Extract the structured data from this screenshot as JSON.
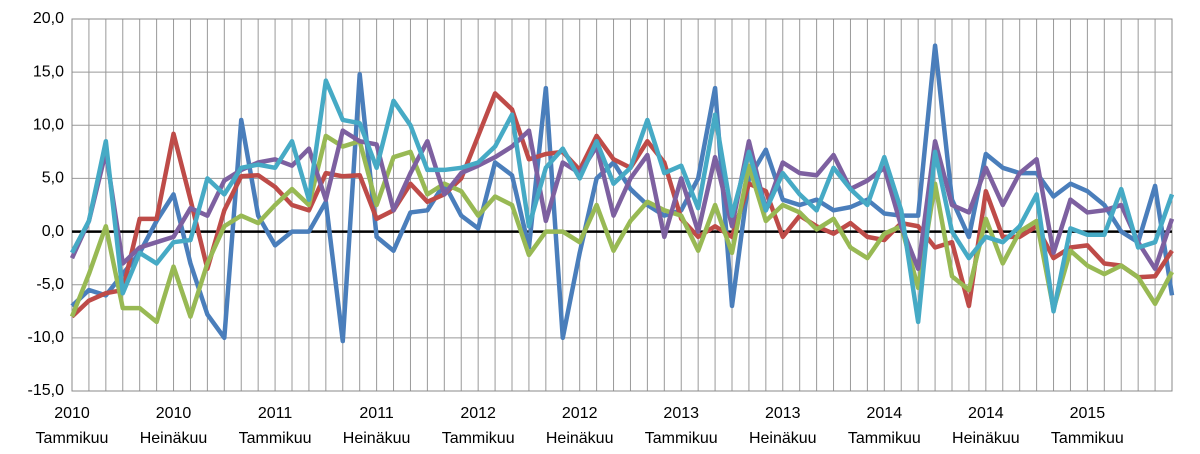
{
  "chart_data": {
    "type": "line",
    "categories": [
      "2010 Tammikuu",
      null,
      null,
      null,
      null,
      null,
      "2010 Heinäkuu",
      null,
      null,
      null,
      null,
      null,
      "2011 Tammikuu",
      null,
      null,
      null,
      null,
      null,
      "2011 Heinäkuu",
      null,
      null,
      null,
      null,
      null,
      "2012 Tammikuu",
      null,
      null,
      null,
      null,
      null,
      "2012 Heinäkuu",
      null,
      null,
      null,
      null,
      null,
      "2013 Tammikuu",
      null,
      null,
      null,
      null,
      null,
      "2013 Heinäkuu",
      null,
      null,
      null,
      null,
      null,
      "2014 Tammikuu",
      null,
      null,
      null,
      null,
      null,
      "2014 Heinäkuu",
      null,
      null,
      null,
      null,
      null,
      "2015 Tammikuu",
      null,
      null,
      null,
      null,
      null
    ],
    "series": [
      {
        "color": "#4a7ebb",
        "values": [
          -7,
          -5.5,
          -6,
          -4,
          -2,
          1,
          3.5,
          -3,
          -7.8,
          -10,
          10.5,
          1.5,
          -1.3,
          0,
          0,
          2.8,
          -10.3,
          14.8,
          -0.5,
          -1.8,
          1.8,
          2,
          4.5,
          1.5,
          0.3,
          6.5,
          5.3,
          -1.5,
          13.5,
          -10,
          -2,
          5,
          6.5,
          4,
          2.5,
          1.5,
          2,
          5,
          13.5,
          -7,
          5,
          7.7,
          3,
          2.5,
          3,
          2,
          2.3,
          3,
          1.7,
          1.5,
          1.5,
          17.5,
          3,
          -0.5,
          7.3,
          6,
          5.5,
          5.5,
          3.3,
          4.5,
          3.8,
          2.5,
          0,
          -1,
          4.3,
          -6
        ]
      },
      {
        "color": "#be4b48",
        "values": [
          -8,
          -6.5,
          -5.8,
          -5.5,
          1.2,
          1.2,
          9.2,
          3,
          -3.5,
          2,
          5.2,
          5.3,
          4.2,
          2.5,
          2,
          5.5,
          5.2,
          5.3,
          1.2,
          2,
          4.5,
          2.8,
          3.5,
          5,
          9,
          13,
          11.5,
          6.8,
          7.3,
          7.5,
          5.8,
          9,
          6.8,
          6,
          8.5,
          6.5,
          1.2,
          -0.5,
          0.5,
          -0.5,
          4.5,
          3.8,
          -0.5,
          1.5,
          0.5,
          -0.2,
          0.8,
          -0.5,
          -0.8,
          0.8,
          0.5,
          -1.5,
          -1,
          -7,
          3.8,
          -0.5,
          -0.5,
          0.5,
          -2.5,
          -1.5,
          -1.3,
          -3,
          -3.2,
          -4.3,
          -4.2,
          -1.8
        ]
      },
      {
        "color": "#98b954",
        "values": [
          -8,
          -4,
          0.5,
          -7.2,
          -7.2,
          -8.5,
          -3.3,
          -8,
          -3,
          0.5,
          1.5,
          0.8,
          2.5,
          4,
          2.5,
          9,
          8,
          8.5,
          2.5,
          7,
          7.5,
          3.5,
          4.5,
          3.8,
          1.5,
          3.3,
          2.5,
          -2.2,
          0,
          0,
          -1,
          2.5,
          -1.8,
          1,
          2.8,
          2,
          1.5,
          -1.8,
          2.5,
          -2,
          6.2,
          1,
          2.5,
          1.8,
          0.2,
          1.2,
          -1.5,
          -2.5,
          -0.2,
          0.5,
          -5.3,
          4.5,
          -4.2,
          -5.5,
          1.2,
          -3,
          0,
          1,
          -7.3,
          -1.8,
          -3.2,
          -4,
          -3.2,
          -4.3,
          -6.8,
          -3.8
        ]
      },
      {
        "color": "#7d60a0",
        "values": [
          -2.5,
          1,
          7.5,
          -3,
          -1.5,
          -1,
          -0.5,
          2.2,
          1.5,
          4.8,
          5.8,
          6.5,
          6.8,
          6.2,
          7.8,
          3,
          9.5,
          8.5,
          8.2,
          2,
          5.5,
          8.5,
          3.5,
          5.5,
          6.2,
          7,
          8,
          9.5,
          1,
          6.5,
          5.5,
          8,
          1.5,
          5,
          7.2,
          -0.5,
          5,
          0,
          7,
          0.5,
          8.5,
          2,
          6.5,
          5.5,
          5.3,
          7.2,
          4,
          4.8,
          6,
          0.5,
          -3.5,
          8.5,
          2.5,
          1.8,
          6,
          2.5,
          5.5,
          6.8,
          -2,
          3,
          1.8,
          2,
          2.5,
          -1,
          -3.5,
          1.2
        ]
      },
      {
        "color": "#46aac5",
        "values": [
          -2,
          1,
          8.5,
          -5.8,
          -2,
          -3,
          -1,
          -0.8,
          5,
          3.5,
          6,
          6.3,
          6,
          8.5,
          3,
          14.2,
          10.5,
          10.2,
          6,
          12.3,
          10,
          5.8,
          5.8,
          6,
          6.5,
          8,
          11,
          0.5,
          6,
          7.8,
          5,
          8.5,
          4.5,
          6,
          10.5,
          5.5,
          6.2,
          2.2,
          11,
          1.5,
          7.5,
          2,
          5.5,
          3.5,
          2,
          6,
          4,
          2.5,
          7,
          2,
          -8.5,
          7.5,
          0,
          -2.5,
          -0.5,
          -1,
          0.5,
          3.5,
          -7.5,
          0.3,
          -0.3,
          -0.3,
          4,
          -1.5,
          -1,
          3.5
        ]
      }
    ],
    "ylim": [
      -15,
      20
    ],
    "yticks": [
      {
        "value": -15,
        "label": "-15,0"
      },
      {
        "value": -10,
        "label": "-10,0"
      },
      {
        "value": -5,
        "label": "-5,0"
      },
      {
        "value": 0,
        "label": "0,0"
      },
      {
        "value": 5,
        "label": "5,0"
      },
      {
        "value": 10,
        "label": "10,0"
      },
      {
        "value": 15,
        "label": "15,0"
      },
      {
        "value": 20,
        "label": "20,0"
      }
    ],
    "grid": true
  }
}
